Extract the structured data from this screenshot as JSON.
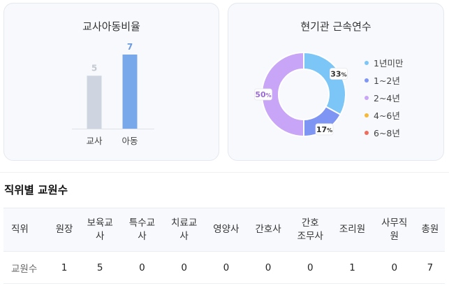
{
  "ratio_card": {
    "title": "교사아동비율",
    "chart_data": {
      "type": "bar",
      "categories": [
        "교사",
        "아동"
      ],
      "values": [
        5,
        7
      ],
      "colors": [
        "#cfd5e0",
        "#78a8ea"
      ],
      "value_label_colors": [
        "#c4c9d2",
        "#6a9be0"
      ]
    }
  },
  "tenure_card": {
    "title": "현기관 근속연수",
    "chart_data": {
      "type": "pie",
      "donut": true,
      "series": [
        {
          "name": "1년미만",
          "value": 33,
          "color": "#7cc6f7",
          "label": "33"
        },
        {
          "name": "1~2년",
          "value": 17,
          "color": "#7f95f4",
          "label": "17"
        },
        {
          "name": "2~4년",
          "value": 50,
          "color": "#c8a5f6",
          "label": "50"
        },
        {
          "name": "4~6년",
          "value": 0,
          "color": "#f4b93a",
          "label": ""
        },
        {
          "name": "6~8년",
          "value": 0,
          "color": "#ef6d5e",
          "label": ""
        }
      ],
      "percent_suffix": "%"
    }
  },
  "staff_section": {
    "title": "직위별 교원수",
    "headers": [
      "직위",
      "원장",
      "보육교\n사",
      "특수교\n사",
      "치료교\n사",
      "영양사",
      "간호사",
      "간호\n조무사",
      "조리원",
      "사무직\n원",
      "총원"
    ],
    "rows": [
      [
        "교원수",
        "1",
        "5",
        "0",
        "0",
        "0",
        "0",
        "0",
        "1",
        "0",
        "7"
      ]
    ]
  }
}
